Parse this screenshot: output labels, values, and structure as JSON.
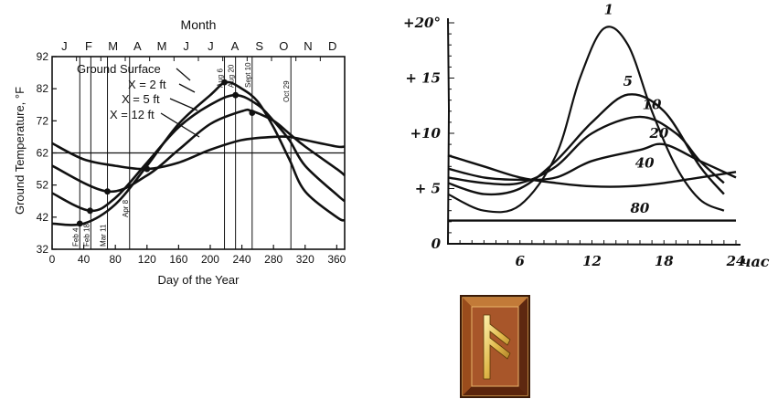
{
  "chart_data": [
    {
      "type": "line",
      "title": "Month",
      "xlabel": "Day of the Year",
      "ylabel": "Ground Temperature, °F",
      "xlim": [
        0,
        370
      ],
      "ylim": [
        32,
        92
      ],
      "x_ticks": [
        0,
        40,
        80,
        120,
        160,
        200,
        240,
        280,
        320,
        360
      ],
      "y_ticks": [
        32,
        42,
        52,
        62,
        72,
        82,
        92
      ],
      "months": [
        "J",
        "F",
        "M",
        "A",
        "M",
        "J",
        "J",
        "A",
        "S",
        "O",
        "N",
        "D"
      ],
      "reference_line": 62,
      "series": [
        {
          "name": "Ground Surface",
          "x": [
            0,
            40,
            80,
            120,
            160,
            200,
            220,
            240,
            260,
            280,
            300,
            320,
            360,
            370
          ],
          "y": [
            40,
            40,
            46,
            58,
            71,
            80,
            84,
            82,
            78,
            70,
            60,
            50,
            42,
            41
          ]
        },
        {
          "name": "X = 2 ft",
          "x": [
            0,
            48,
            80,
            120,
            160,
            200,
            232,
            260,
            280,
            300,
            320,
            360,
            370
          ],
          "y": [
            49.5,
            44,
            48,
            59,
            70,
            77,
            80,
            77,
            72,
            66,
            58,
            49,
            47
          ]
        },
        {
          "name": "X = 5 ft",
          "x": [
            0,
            70,
            120,
            160,
            200,
            240,
            253,
            280,
            300,
            320,
            360,
            370
          ],
          "y": [
            58,
            50,
            55,
            63,
            71,
            75,
            75,
            72,
            68,
            64,
            57,
            55
          ]
        },
        {
          "name": "X = 12 ft",
          "x": [
            0,
            40,
            80,
            120,
            160,
            200,
            240,
            280,
            300,
            320,
            360,
            370
          ],
          "y": [
            65,
            60,
            58,
            57,
            59,
            63,
            66,
            67,
            67,
            66,
            64,
            64
          ]
        }
      ],
      "markers": [
        {
          "label": "Feb 4",
          "x": 35
        },
        {
          "label": "Feb 18",
          "x": 49
        },
        {
          "label": "Mar 11",
          "x": 70
        },
        {
          "label": "Apr 8",
          "x": 98
        },
        {
          "label": "Aug 6",
          "x": 218
        },
        {
          "label": "Aug 20",
          "x": 232
        },
        {
          "label": "Sept 10",
          "x": 253
        },
        {
          "label": "Oct 29",
          "x": 302
        }
      ],
      "points": [
        {
          "x": 35,
          "y": 40
        },
        {
          "x": 48,
          "y": 44
        },
        {
          "x": 70,
          "y": 50
        },
        {
          "x": 120,
          "y": 57
        },
        {
          "x": 218,
          "y": 84
        },
        {
          "x": 232,
          "y": 80
        },
        {
          "x": 253,
          "y": 74.5
        }
      ]
    },
    {
      "type": "line",
      "xlabel": "час",
      "ylabel": "",
      "xlim": [
        0,
        24
      ],
      "ylim": [
        0,
        20
      ],
      "x_ticks": [
        6,
        12,
        18,
        24
      ],
      "x_tick_labels": [
        "6",
        "12",
        "18",
        "24"
      ],
      "y_ticks": [
        0,
        5,
        10,
        15,
        20
      ],
      "y_tick_labels": [
        "0",
        "+ 5",
        "+10",
        "+ 15",
        "+20°"
      ],
      "series": [
        {
          "name": "1",
          "x": [
            0,
            3,
            6,
            9,
            11,
            13,
            15,
            17,
            19,
            21,
            23
          ],
          "y": [
            4.5,
            3,
            3.5,
            8,
            15,
            19.5,
            18,
            12,
            7,
            4,
            3
          ]
        },
        {
          "name": "5",
          "x": [
            0,
            3,
            6,
            9,
            12,
            15,
            18,
            21,
            23
          ],
          "y": [
            5.5,
            4.5,
            5,
            7.5,
            11,
            13.5,
            12,
            7,
            4.5
          ]
        },
        {
          "name": "10",
          "x": [
            0,
            3,
            6,
            9,
            12,
            16,
            19,
            21,
            23
          ],
          "y": [
            6,
            5.5,
            5.5,
            7,
            10,
            11.5,
            10,
            7.5,
            5.5
          ]
        },
        {
          "name": "20",
          "x": [
            0,
            3,
            6,
            9,
            12,
            16,
            18,
            21,
            24
          ],
          "y": [
            6.8,
            6,
            5.8,
            6,
            7.5,
            8.5,
            9,
            7.5,
            6
          ]
        },
        {
          "name": "40",
          "x": [
            0,
            3,
            6,
            9,
            12,
            15,
            18,
            21,
            24
          ],
          "y": [
            8,
            7,
            6,
            5.5,
            5.2,
            5.2,
            5.5,
            6,
            6.5
          ]
        },
        {
          "name": "80",
          "x": [
            0,
            24
          ],
          "y": [
            2.1,
            2.1
          ]
        }
      ]
    }
  ]
}
